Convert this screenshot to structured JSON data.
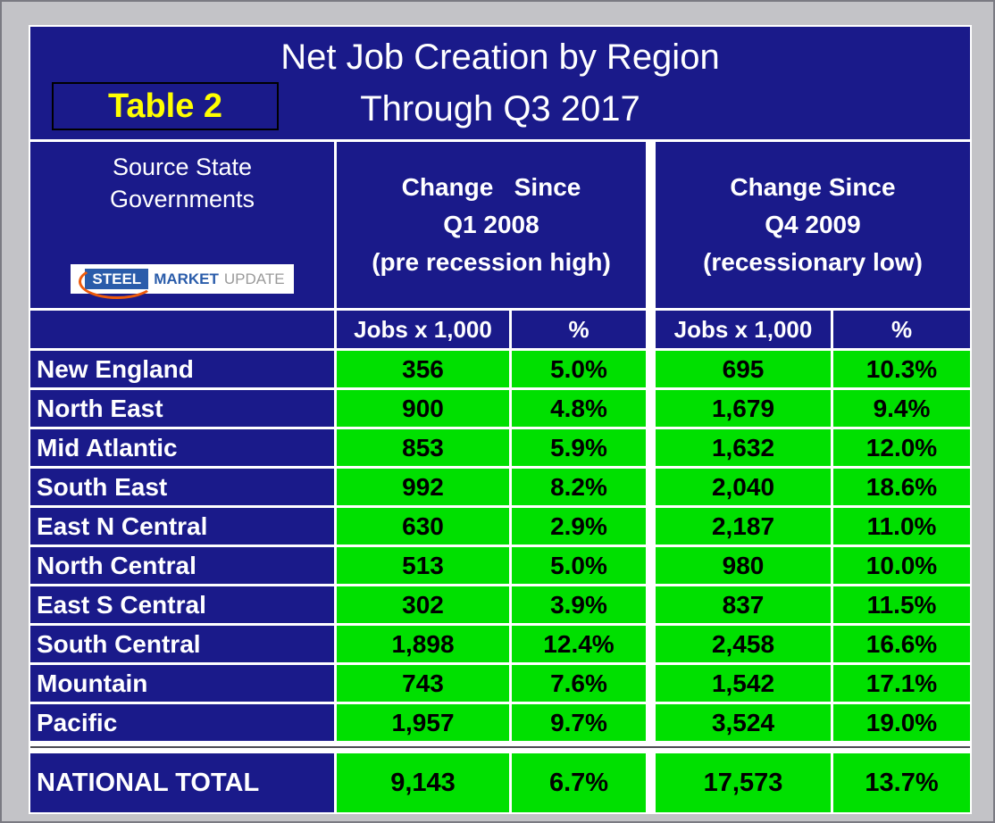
{
  "colors": {
    "page_bg": "#c3c3c7",
    "navy": "#1a1a8a",
    "green": "#00e000",
    "table_label_yellow": "#ffff00",
    "gridline_white": "#ffffff"
  },
  "header": {
    "table_label": "Table 2",
    "title_line1": "Net Job Creation by Region",
    "title_line2": "Through Q3 2017"
  },
  "source": {
    "line1": "Source State",
    "line2": "Governments",
    "logo": {
      "steel": "STEEL",
      "market": "MARKET",
      "update": "UPDATE"
    }
  },
  "columns": {
    "group1": {
      "line1": "Change   Since",
      "line2": "Q1 2008",
      "line3": "(pre recession high)"
    },
    "group2": {
      "line1": "Change Since",
      "line2": "Q4 2009",
      "line3": "(recessionary low)"
    },
    "sub": {
      "jobs": "Jobs x 1,000",
      "pct": "%"
    }
  },
  "chart_data": {
    "type": "table",
    "title": "Net Job Creation by Region Through Q3 2017",
    "source": "Source State Governments",
    "column_groups": [
      "Change Since Q1 2008 (pre recession high)",
      "Change Since Q4 2009 (recessionary low)"
    ],
    "sub_columns": [
      "Jobs x 1,000",
      "%",
      "Jobs x 1,000",
      "%"
    ],
    "rows": [
      {
        "region": "New England",
        "jobs_2008": "356",
        "pct_2008": "5.0%",
        "jobs_2009": "695",
        "pct_2009": "10.3%"
      },
      {
        "region": "North East",
        "jobs_2008": "900",
        "pct_2008": "4.8%",
        "jobs_2009": "1,679",
        "pct_2009": "9.4%"
      },
      {
        "region": "Mid Atlantic",
        "jobs_2008": "853",
        "pct_2008": "5.9%",
        "jobs_2009": "1,632",
        "pct_2009": "12.0%"
      },
      {
        "region": "South East",
        "jobs_2008": "992",
        "pct_2008": "8.2%",
        "jobs_2009": "2,040",
        "pct_2009": "18.6%"
      },
      {
        "region": "East N Central",
        "jobs_2008": "630",
        "pct_2008": "2.9%",
        "jobs_2009": "2,187",
        "pct_2009": "11.0%"
      },
      {
        "region": "North Central",
        "jobs_2008": "513",
        "pct_2008": "5.0%",
        "jobs_2009": "980",
        "pct_2009": "10.0%"
      },
      {
        "region": "East S Central",
        "jobs_2008": "302",
        "pct_2008": "3.9%",
        "jobs_2009": "837",
        "pct_2009": "11.5%"
      },
      {
        "region": "South Central",
        "jobs_2008": "1,898",
        "pct_2008": "12.4%",
        "jobs_2009": "2,458",
        "pct_2009": "16.6%"
      },
      {
        "region": "Mountain",
        "jobs_2008": "743",
        "pct_2008": "7.6%",
        "jobs_2009": "1,542",
        "pct_2009": "17.1%"
      },
      {
        "region": "Pacific",
        "jobs_2008": "1,957",
        "pct_2008": "9.7%",
        "jobs_2009": "3,524",
        "pct_2009": "19.0%"
      }
    ],
    "total": {
      "region": "NATIONAL TOTAL",
      "jobs_2008": "9,143",
      "pct_2008": "6.7%",
      "jobs_2009": "17,573",
      "pct_2009": "13.7%"
    }
  }
}
